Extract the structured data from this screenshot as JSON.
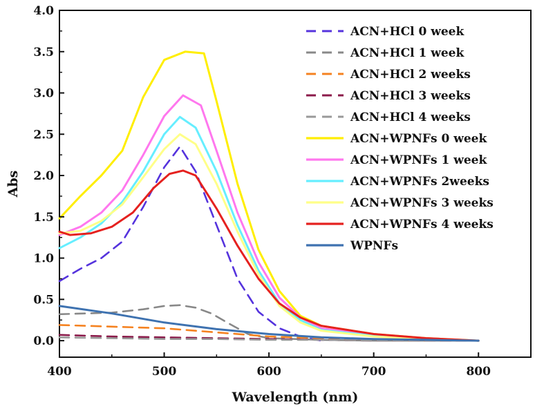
{
  "chart_data": {
    "type": "line",
    "xlabel": "Wavelength (nm)",
    "ylabel": "Abs",
    "xlim": [
      400,
      850
    ],
    "ylim": [
      -0.2,
      4.0
    ],
    "xticks": [
      400,
      500,
      600,
      700,
      800
    ],
    "yticks": [
      0.0,
      0.5,
      1.0,
      1.5,
      2.0,
      2.5,
      3.0,
      3.5,
      4.0
    ],
    "ytick_labels": [
      "0.0",
      "0.5",
      "1.0",
      "1.5",
      "2.0",
      "2.5",
      "3.0",
      "3.5",
      "4.0"
    ],
    "grid": false,
    "legend_position": "top-right",
    "series": [
      {
        "name": "ACN+HCl 0 week",
        "color": "#5533dd",
        "dash": true,
        "x": [
          400,
          420,
          440,
          460,
          480,
          500,
          515,
          530,
          550,
          570,
          590,
          610,
          630,
          650
        ],
        "y": [
          0.72,
          0.87,
          1.0,
          1.2,
          1.62,
          2.1,
          2.35,
          2.05,
          1.4,
          0.75,
          0.35,
          0.15,
          0.05,
          0.0
        ]
      },
      {
        "name": "ACN+HCl 1 week",
        "color": "#888888",
        "dash": true,
        "x": [
          400,
          450,
          480,
          500,
          515,
          530,
          545,
          560,
          580,
          600,
          650,
          700,
          800
        ],
        "y": [
          0.32,
          0.34,
          0.38,
          0.42,
          0.43,
          0.4,
          0.33,
          0.22,
          0.08,
          0.03,
          0.01,
          0.0,
          0.0
        ]
      },
      {
        "name": "ACN+HCl 2 weeks",
        "color": "#f58220",
        "dash": true,
        "x": [
          400,
          450,
          500,
          550,
          600,
          650,
          700,
          750,
          800
        ],
        "y": [
          0.19,
          0.17,
          0.15,
          0.1,
          0.05,
          0.03,
          0.01,
          0.0,
          0.0
        ]
      },
      {
        "name": "ACN+HCl 3 weeks",
        "color": "#8b1a4a",
        "dash": true,
        "x": [
          400,
          450,
          500,
          550,
          600,
          650,
          700,
          750,
          800
        ],
        "y": [
          0.07,
          0.05,
          0.04,
          0.03,
          0.02,
          0.01,
          0.0,
          0.0,
          0.0
        ]
      },
      {
        "name": "ACN+HCl 4 weeks",
        "color": "#999999",
        "dash": true,
        "x": [
          400,
          450,
          500,
          550,
          600,
          650,
          700,
          750,
          800
        ],
        "y": [
          0.04,
          0.03,
          0.02,
          0.02,
          0.01,
          0.01,
          0.0,
          0.0,
          0.0
        ]
      },
      {
        "name": "ACN+WPNFs 0 week",
        "color": "#ffee00",
        "dash": false,
        "x": [
          400,
          420,
          440,
          460,
          480,
          500,
          520,
          538,
          550,
          570,
          590,
          610,
          630,
          650,
          700,
          750,
          800
        ],
        "y": [
          1.48,
          1.75,
          2.0,
          2.3,
          2.95,
          3.4,
          3.5,
          3.48,
          2.9,
          1.9,
          1.1,
          0.6,
          0.3,
          0.18,
          0.08,
          0.03,
          0.0
        ]
      },
      {
        "name": "ACN+WPNFs 1 week",
        "color": "#ff77ee",
        "dash": false,
        "x": [
          400,
          420,
          440,
          460,
          480,
          500,
          518,
          535,
          550,
          570,
          590,
          610,
          630,
          650,
          700,
          750,
          800
        ],
        "y": [
          1.28,
          1.38,
          1.55,
          1.82,
          2.25,
          2.72,
          2.97,
          2.85,
          2.3,
          1.55,
          0.95,
          0.52,
          0.28,
          0.15,
          0.07,
          0.02,
          0.0
        ]
      },
      {
        "name": "ACN+WPNFs 2weeks",
        "color": "#66eeff",
        "dash": false,
        "x": [
          400,
          420,
          440,
          460,
          480,
          500,
          515,
          530,
          550,
          570,
          590,
          610,
          630,
          650,
          700,
          750,
          800
        ],
        "y": [
          1.12,
          1.25,
          1.42,
          1.68,
          2.05,
          2.5,
          2.71,
          2.58,
          2.05,
          1.4,
          0.85,
          0.45,
          0.25,
          0.13,
          0.06,
          0.02,
          0.0
        ]
      },
      {
        "name": "ACN+WPNFs 3 weeks",
        "color": "#ffff88",
        "dash": false,
        "x": [
          400,
          420,
          440,
          460,
          480,
          500,
          515,
          530,
          550,
          570,
          590,
          610,
          630,
          650,
          700,
          750,
          800
        ],
        "y": [
          1.3,
          1.33,
          1.45,
          1.65,
          1.98,
          2.32,
          2.5,
          2.38,
          1.9,
          1.32,
          0.8,
          0.42,
          0.22,
          0.12,
          0.05,
          0.02,
          0.0
        ]
      },
      {
        "name": "ACN+WPNFs 4 weeks",
        "color": "#e5211f",
        "dash": false,
        "x": [
          400,
          410,
          430,
          450,
          470,
          490,
          505,
          518,
          530,
          550,
          570,
          590,
          610,
          630,
          650,
          700,
          750,
          800
        ],
        "y": [
          1.32,
          1.28,
          1.3,
          1.38,
          1.55,
          1.85,
          2.02,
          2.06,
          2.0,
          1.6,
          1.15,
          0.75,
          0.45,
          0.28,
          0.18,
          0.08,
          0.03,
          0.0
        ]
      },
      {
        "name": "WPNFs",
        "color": "#3e72b0",
        "dash": false,
        "x": [
          400,
          450,
          500,
          550,
          600,
          650,
          700,
          750,
          800
        ],
        "y": [
          0.42,
          0.33,
          0.22,
          0.14,
          0.08,
          0.04,
          0.02,
          0.01,
          0.0
        ]
      }
    ]
  }
}
